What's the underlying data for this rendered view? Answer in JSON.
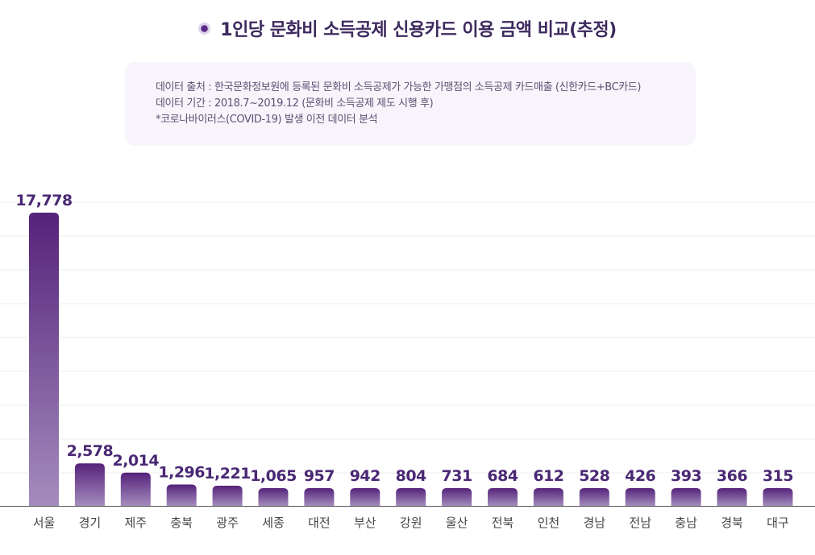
{
  "header": {
    "title": "1인당 문화비 소득공제 신용카드 이용 금액 비교(추정)"
  },
  "info": {
    "lines": [
      "데이터 출처 : 한국문화정보원에 등록된 문화비 소득공제가 가능한 가맹점의 소득공제 카드매출 (신한카드+BC카드)",
      "데이터 기간 : 2018.7~2019.12 (문화비 소득공제 제도 시행 후)",
      "*코로나바이러스(COVID-19) 발생 이전 데이터 분석"
    ]
  },
  "colors": {
    "bar_top": "#55227a",
    "bar_bottom": "#a48cbd",
    "value_label": "#4a2874",
    "gridline": "#ececec",
    "axis": "#555555"
  },
  "chart_data": {
    "type": "bar",
    "title": "1인당 문화비 소득공제 신용카드 이용 금액 비교(추정)",
    "categories": [
      "서울",
      "경기",
      "제주",
      "충북",
      "광주",
      "세종",
      "대전",
      "부산",
      "강원",
      "울산",
      "전북",
      "인천",
      "경남",
      "전남",
      "충남",
      "경북",
      "대구"
    ],
    "values": [
      17778,
      2578,
      2014,
      1296,
      1221,
      1065,
      957,
      942,
      804,
      731,
      684,
      612,
      528,
      426,
      393,
      366,
      315
    ],
    "value_labels": [
      "17,778",
      "2,578",
      "2,014",
      "1,296",
      "1,221",
      "1,065",
      "957",
      "942",
      "804",
      "731",
      "684",
      "612",
      "528",
      "426",
      "393",
      "366",
      "315"
    ],
    "xlabel": "",
    "ylabel": "",
    "ylim": [
      0,
      18000
    ],
    "grid": true,
    "legend": "none"
  }
}
